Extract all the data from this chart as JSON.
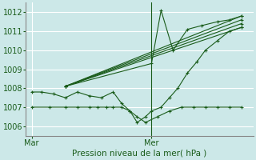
{
  "title": "Pression niveau de la mer( hPa )",
  "background_color": "#cce8e8",
  "grid_color": "#ffffff",
  "line_color": "#1a5c1a",
  "ylim": [
    1005.5,
    1012.5
  ],
  "xlim_days": [
    0,
    2.0
  ],
  "ylabel_ticks": [
    1006,
    1007,
    1008,
    1009,
    1010,
    1011,
    1012
  ],
  "xtick_labels": [
    "Mar",
    "Mer"
  ],
  "xtick_positions": [
    0.0,
    1.0
  ],
  "vline_x": 1.0,
  "series": [
    {
      "x": [
        0.0,
        0.15,
        0.28,
        0.38,
        0.48,
        0.55,
        0.62,
        0.68,
        0.75,
        0.82,
        0.88,
        0.95,
        1.05,
        1.15,
        1.25,
        1.35,
        1.45,
        1.55,
        1.65,
        1.75
      ],
      "y": [
        1007.0,
        1007.0,
        1007.0,
        1007.0,
        1007.0,
        1007.0,
        1007.0,
        1007.0,
        1007.0,
        1006.8,
        1006.5,
        1006.2,
        1006.5,
        1006.8,
        1007.0,
        1007.0,
        1007.0,
        1007.0,
        1007.0,
        1007.0
      ]
    },
    {
      "x": [
        0.0,
        0.08,
        0.18,
        0.28,
        0.38,
        0.48,
        0.58,
        0.68,
        0.75,
        0.82,
        0.88,
        0.95,
        1.0,
        1.08,
        1.15,
        1.22,
        1.3,
        1.38,
        1.45,
        1.55,
        1.65,
        1.75
      ],
      "y": [
        1007.8,
        1007.8,
        1007.7,
        1007.5,
        1007.8,
        1007.6,
        1007.5,
        1007.8,
        1007.2,
        1006.8,
        1006.2,
        1006.5,
        1006.8,
        1007.0,
        1007.5,
        1008.0,
        1008.8,
        1009.4,
        1010.0,
        1010.5,
        1011.0,
        1011.2
      ]
    },
    {
      "x": [
        0.28,
        1.75
      ],
      "y": [
        1008.1,
        1011.2
      ]
    },
    {
      "x": [
        0.28,
        1.75
      ],
      "y": [
        1008.1,
        1011.4
      ]
    },
    {
      "x": [
        0.28,
        1.75
      ],
      "y": [
        1008.1,
        1011.6
      ]
    },
    {
      "x": [
        0.28,
        1.75
      ],
      "y": [
        1008.1,
        1011.8
      ]
    },
    {
      "x": [
        0.28,
        1.0,
        1.08,
        1.18,
        1.3,
        1.42,
        1.55,
        1.65,
        1.75
      ],
      "y": [
        1008.1,
        1009.3,
        1012.1,
        1010.0,
        1011.1,
        1011.3,
        1011.5,
        1011.6,
        1011.8
      ]
    }
  ]
}
